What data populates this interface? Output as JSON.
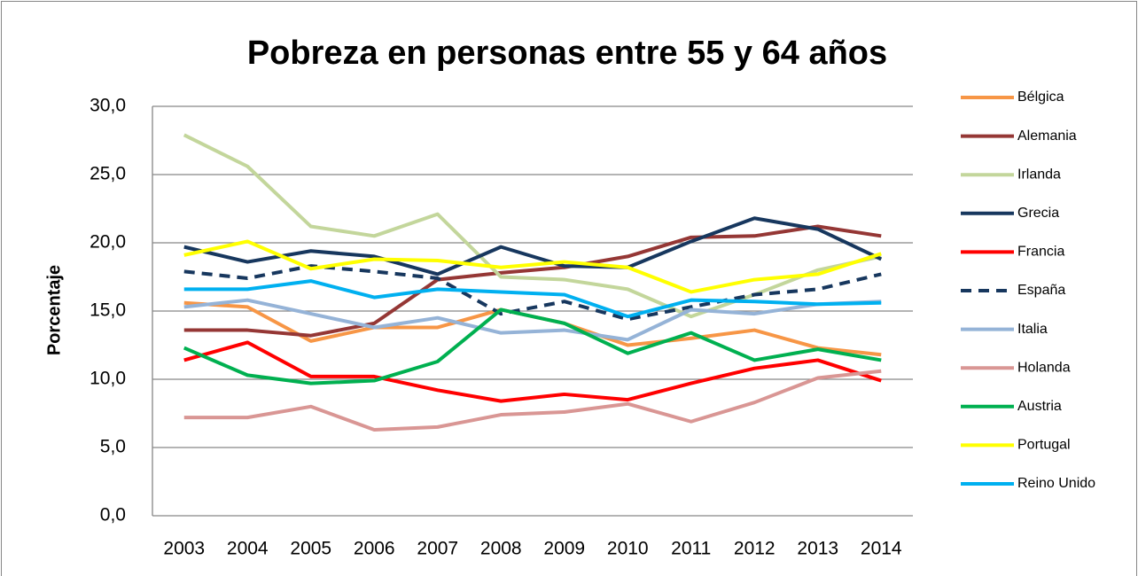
{
  "chart_data": {
    "type": "line",
    "title": "Pobreza en personas entre 55 y 64 años",
    "y_label": "Porcentaje",
    "categories": [
      "2003",
      "2004",
      "2005",
      "2006",
      "2007",
      "2008",
      "2009",
      "2010",
      "2011",
      "2012",
      "2013",
      "2014"
    ],
    "ylim": [
      0,
      30
    ],
    "yticks": [
      {
        "value": 0,
        "label": "0,0"
      },
      {
        "value": 5,
        "label": "5,0"
      },
      {
        "value": 10,
        "label": "10,0"
      },
      {
        "value": 15,
        "label": "15,0"
      },
      {
        "value": 20,
        "label": "20,0"
      },
      {
        "value": 25,
        "label": "25,0"
      },
      {
        "value": 30,
        "label": "30,0"
      }
    ],
    "grid": true,
    "legend": "right",
    "series": [
      {
        "name": "Bélgica",
        "color": "#f79646",
        "values": [
          15.6,
          15.3,
          12.8,
          13.8,
          13.8,
          15.1,
          14.1,
          12.5,
          13.0,
          13.6,
          12.3,
          11.8
        ]
      },
      {
        "name": "Alemania",
        "color": "#953735",
        "values": [
          13.6,
          13.6,
          13.2,
          14.1,
          17.3,
          17.8,
          18.2,
          19.0,
          20.4,
          20.5,
          21.2,
          20.5
        ]
      },
      {
        "name": "Irlanda",
        "color": "#c3d69b",
        "values": [
          27.9,
          25.6,
          21.2,
          20.5,
          22.1,
          17.5,
          17.3,
          16.6,
          14.6,
          16.2,
          18.0,
          19.0
        ]
      },
      {
        "name": "Grecia",
        "color": "#17375e",
        "values": [
          19.7,
          18.6,
          19.4,
          19.0,
          17.7,
          19.7,
          18.3,
          18.2,
          20.1,
          21.8,
          21.0,
          18.8
        ]
      },
      {
        "name": "Francia",
        "color": "#ff0000",
        "values": [
          11.4,
          12.7,
          10.2,
          10.2,
          9.2,
          8.4,
          8.9,
          8.5,
          9.7,
          10.8,
          11.4,
          9.9
        ]
      },
      {
        "name": "España",
        "color": "#17375e",
        "style": "dashed",
        "values": [
          17.9,
          17.4,
          18.3,
          17.9,
          17.4,
          14.8,
          15.7,
          14.4,
          15.3,
          16.2,
          16.6,
          17.7
        ]
      },
      {
        "name": "Italia",
        "color": "#95b3d7",
        "values": [
          15.3,
          15.8,
          14.8,
          13.8,
          14.5,
          13.4,
          13.6,
          12.9,
          15.1,
          14.8,
          15.5,
          15.7
        ]
      },
      {
        "name": "Holanda",
        "color": "#d99694",
        "values": [
          7.2,
          7.2,
          8.0,
          6.3,
          6.5,
          7.4,
          7.6,
          8.2,
          6.9,
          8.3,
          10.1,
          10.6
        ]
      },
      {
        "name": "Austria",
        "color": "#00b050",
        "values": [
          12.3,
          10.3,
          9.7,
          9.9,
          11.3,
          15.1,
          14.1,
          11.9,
          13.4,
          11.4,
          12.2,
          11.4
        ]
      },
      {
        "name": "Portugal",
        "color": "#ffff00",
        "values": [
          19.1,
          20.1,
          18.1,
          18.8,
          18.7,
          18.2,
          18.6,
          18.2,
          16.4,
          17.3,
          17.7,
          19.2
        ]
      },
      {
        "name": "Reino Unido",
        "color": "#00b0f0",
        "values": [
          16.6,
          16.6,
          17.2,
          16.0,
          16.6,
          16.4,
          16.2,
          14.6,
          15.8,
          15.7,
          15.5,
          15.6
        ]
      }
    ]
  }
}
